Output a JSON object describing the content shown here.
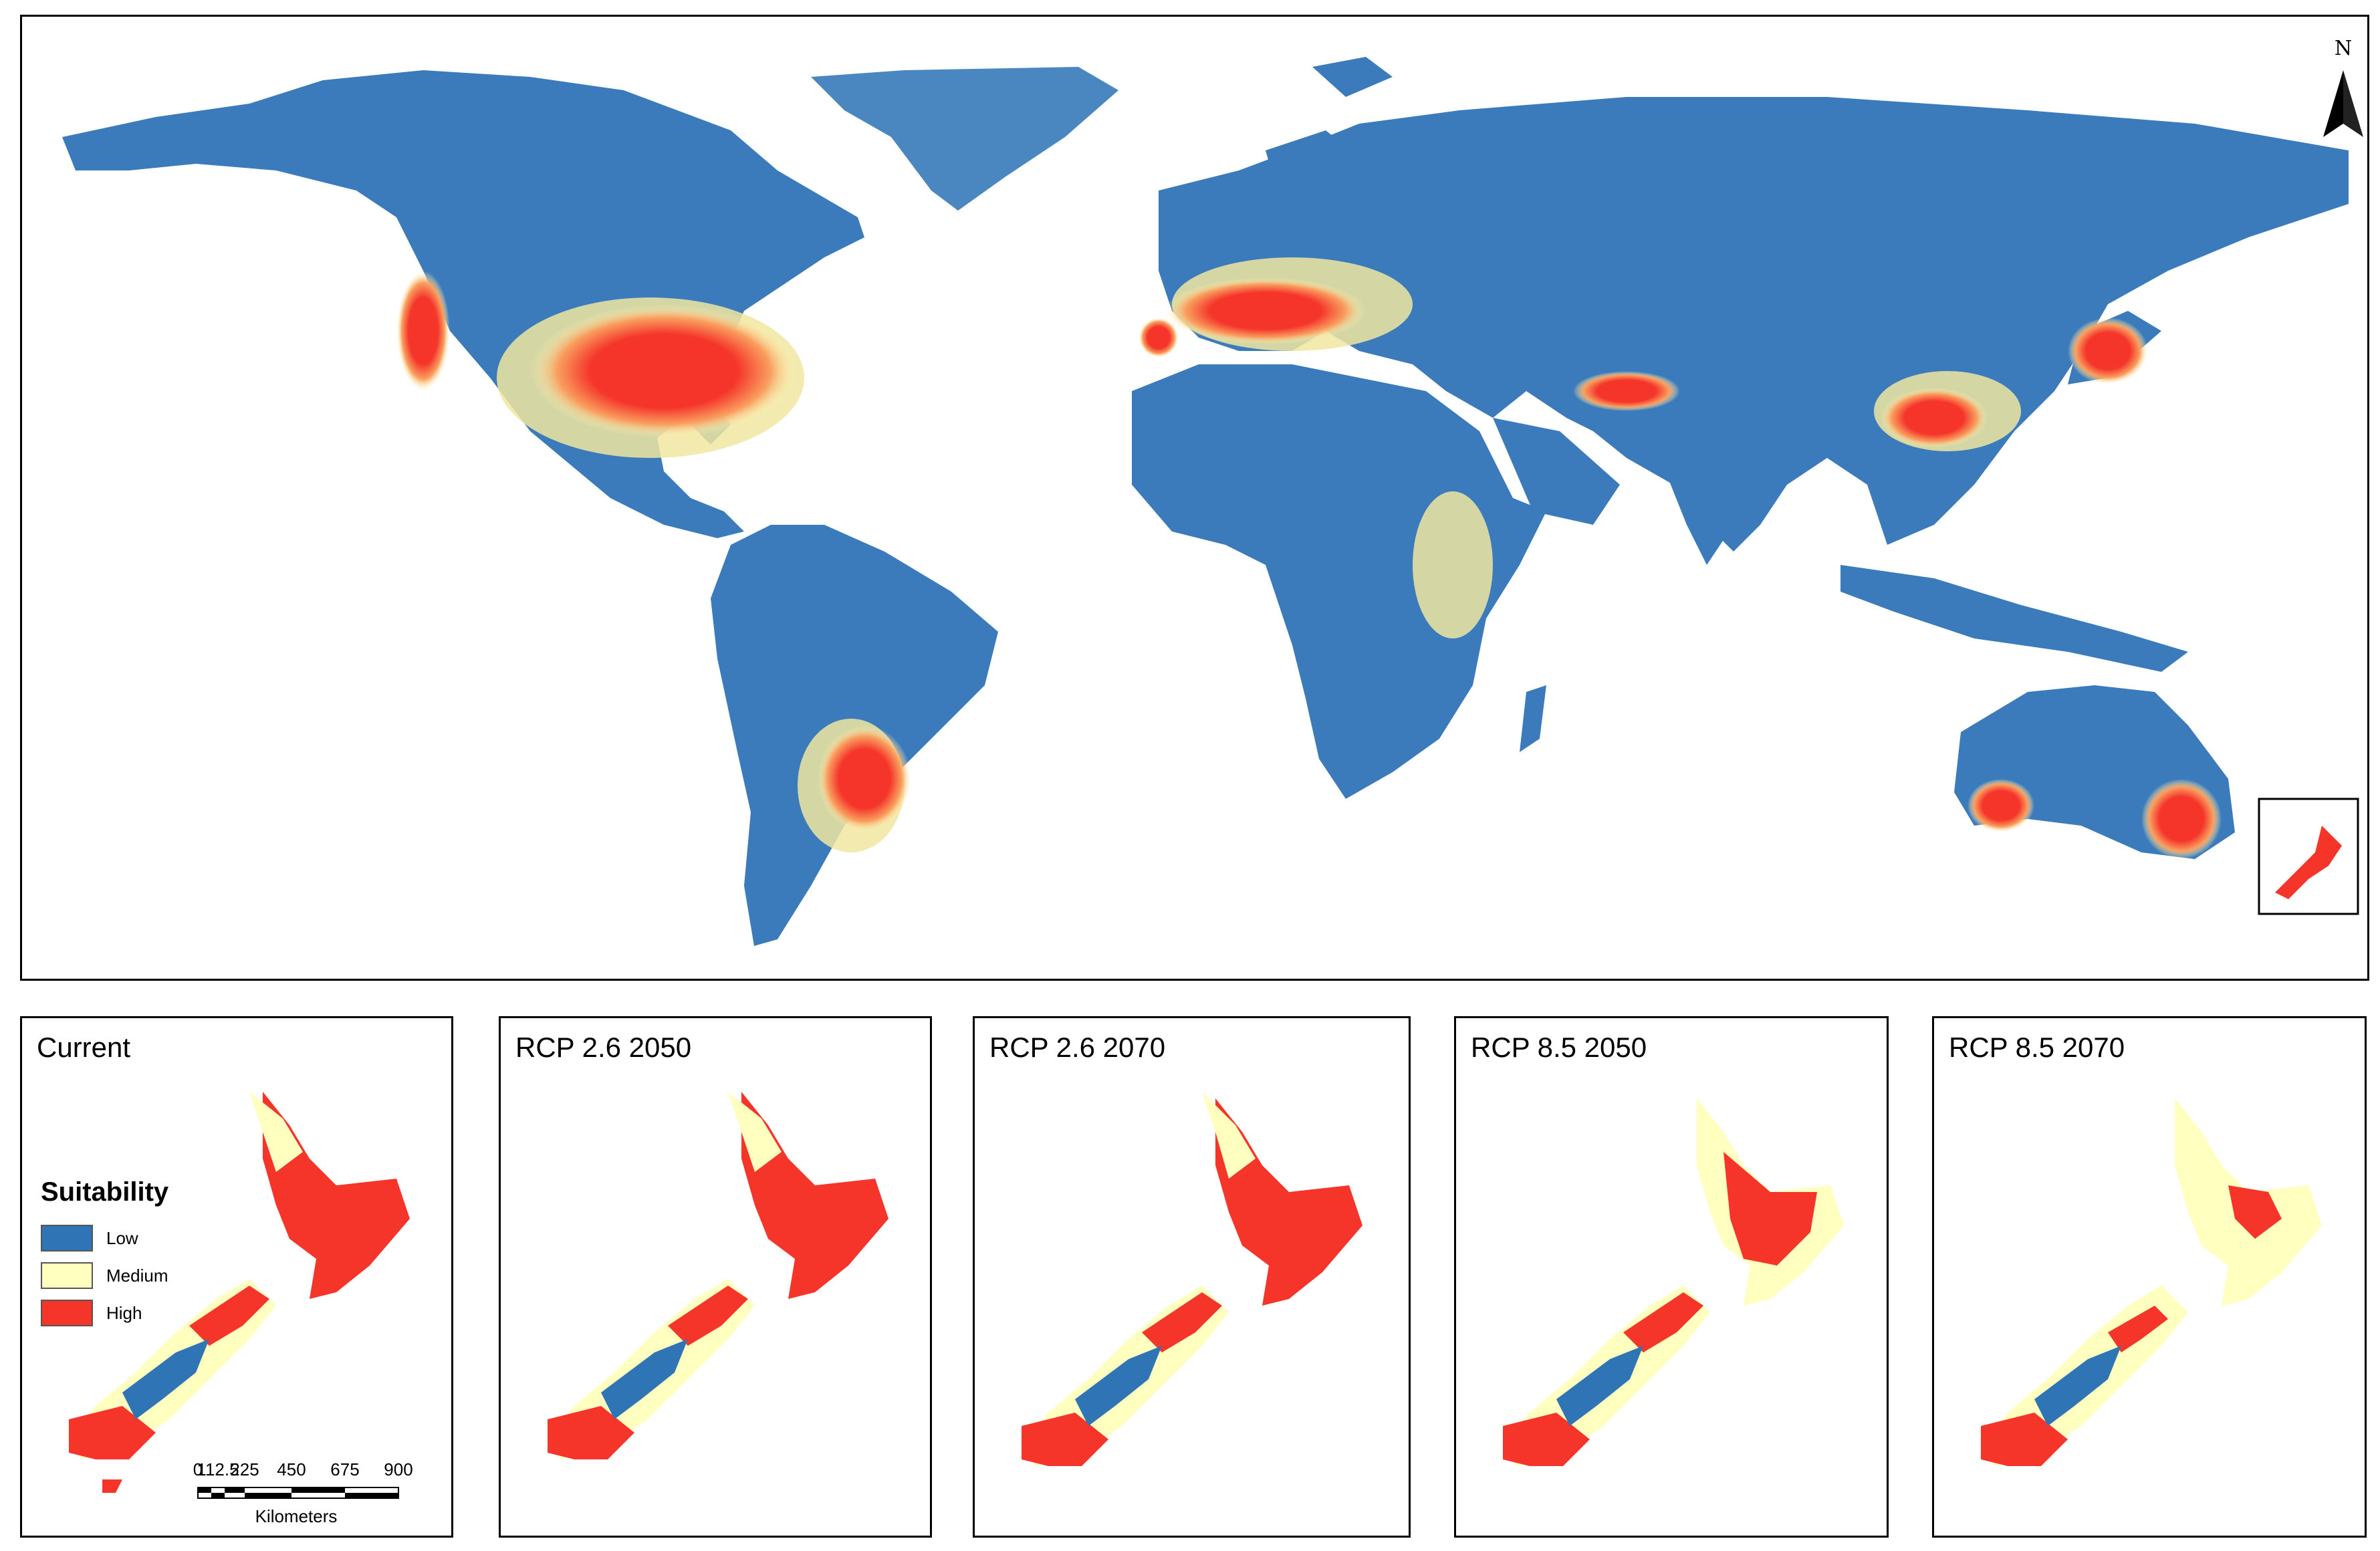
{
  "north_arrow": {
    "label": "N"
  },
  "colors": {
    "low": "#2f74b5",
    "medium": "#ffffc0",
    "high": "#f5352a",
    "ocean": "#ffffff"
  },
  "legend": {
    "title": "Suitability",
    "items": [
      {
        "label": "Low",
        "color": "#2f74b5"
      },
      {
        "label": "Medium",
        "color": "#ffffc0"
      },
      {
        "label": "High",
        "color": "#f5352a"
      }
    ]
  },
  "scale_bar": {
    "ticks": [
      "0",
      "112.5",
      "225",
      "450",
      "675",
      "900"
    ],
    "unit": "Kilometers"
  },
  "panels": [
    {
      "title": "Current"
    },
    {
      "title": "RCP 2.6 2050"
    },
    {
      "title": "RCP 2.6 2070"
    },
    {
      "title": "RCP 8.5 2050"
    },
    {
      "title": "RCP 8.5 2070"
    }
  ]
}
